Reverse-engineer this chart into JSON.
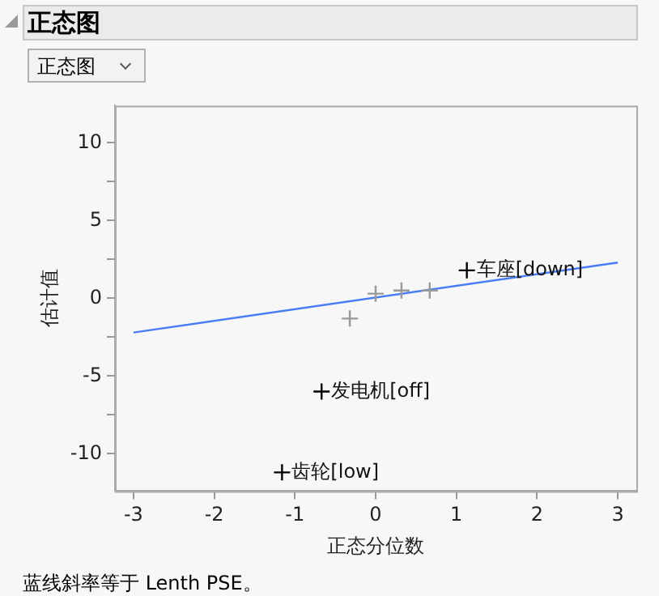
{
  "chart_data": {
    "type": "scatter",
    "title": "正态图",
    "xlabel": "正态分位数",
    "ylabel": "估计值",
    "series": [
      {
        "color": "#000000",
        "x": [
          -1.16,
          -0.67,
          1.13
        ],
        "values": [
          -11.2,
          -6.0,
          1.8
        ]
      },
      {
        "color": "#999999",
        "x": [
          -0.32,
          0,
          0.32,
          0.67
        ],
        "values": [
          -1.3,
          0.3,
          0.5,
          0.5
        ]
      },
      {
        "type": "line",
        "color": "#4a7cf5",
        "marker": "none",
        "x": [
          -3,
          3
        ],
        "values": [
          -2.2,
          2.3
        ]
      }
    ],
    "xlim": [
      -3.23,
      3.23
    ],
    "xticks": [
      -3,
      -2,
      -1,
      0,
      1,
      2,
      3
    ],
    "ylim": [
      -12.4,
      12.4
    ],
    "yticks": [
      -10,
      {
        "value": -7.5,
        "label": null
      },
      -5,
      {
        "value": -2.5,
        "label": null
      },
      0,
      {
        "value": 2.5,
        "label": null
      },
      5,
      {
        "value": 7.5,
        "label": null
      },
      10
    ],
    "marker": "cross",
    "grid": false,
    "legend": false,
    "annotations": [
      "正态图",
      {
        "text": "齿轮[low]",
        "x": -1.16,
        "y": -11.2
      },
      {
        "text": "发电机[off]",
        "x": -0.67,
        "y": -6.0
      },
      {
        "text": "车座[down]",
        "x": 1.13,
        "y": 1.8
      },
      "蓝线斜率等于 Lenth PSE。"
    ]
  }
}
